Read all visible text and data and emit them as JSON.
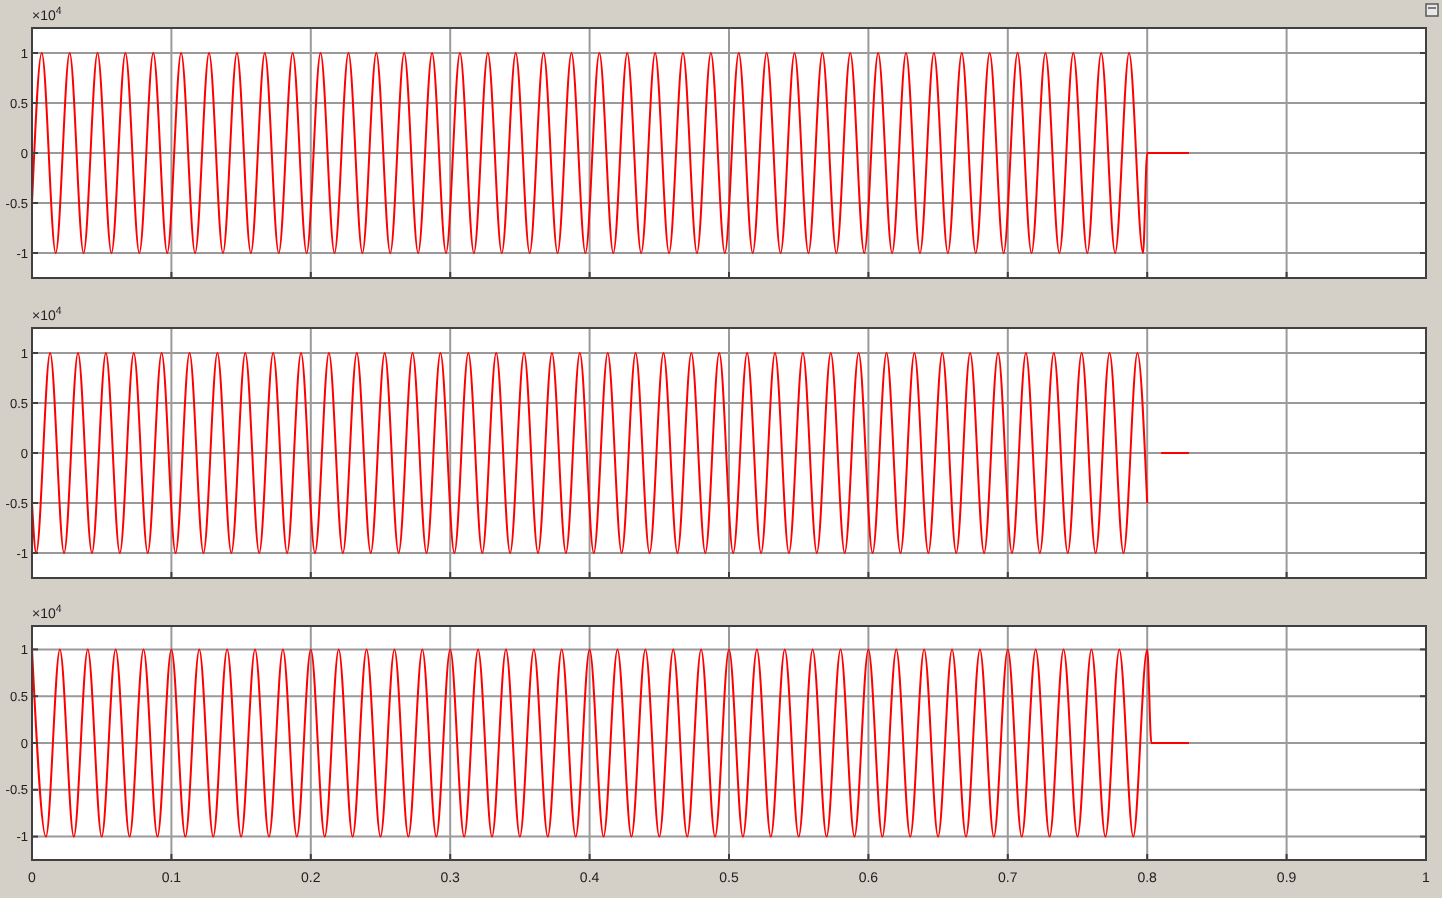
{
  "chart_data": [
    {
      "type": "line",
      "annotations": [
        "×10$^{4}$"
      ],
      "xlim": [
        0,
        1
      ],
      "xticks": [
        0,
        0.1,
        0.2,
        0.3,
        0.4,
        0.5,
        0.6,
        0.7,
        0.8,
        0.9,
        1
      ],
      "ylim": [
        -1.25,
        1.25
      ],
      "yticks": [
        -1,
        -0.5,
        0,
        0.5,
        1
      ],
      "grid": true,
      "tick_labels": "y",
      "x": [
        0,
        0.007,
        0.017,
        0.027,
        0.037,
        0.047,
        0.057,
        0.067,
        0.077,
        0.087,
        0.097,
        0.107,
        0.117,
        0.127,
        0.137,
        0.147,
        0.157,
        0.167,
        0.177,
        0.187,
        0.197,
        0.207,
        0.217,
        0.227,
        0.237,
        0.247,
        0.257,
        0.267,
        0.277,
        0.287,
        0.297,
        0.307,
        0.317,
        0.327,
        0.337,
        0.347,
        0.357,
        0.367,
        0.377,
        0.387,
        0.397,
        0.407,
        0.417,
        0.427,
        0.437,
        0.447,
        0.457,
        0.467,
        0.477,
        0.487,
        0.497,
        0.507,
        0.517,
        0.527,
        0.537,
        0.547,
        0.557,
        0.567,
        0.577,
        0.587,
        0.597,
        0.607,
        0.617,
        0.627,
        0.637,
        0.647,
        0.657,
        0.667,
        0.677,
        0.687,
        0.697,
        0.707,
        0.717,
        0.727,
        0.737,
        0.747,
        0.757,
        0.767,
        0.777,
        0.787,
        0.797,
        0.8,
        0.83
      ],
      "series": [
        {
          "color": "#ff0000",
          "values": [
            -0.5,
            1,
            -1,
            1,
            -1,
            1,
            -1,
            1,
            -1,
            1,
            -1,
            1,
            -1,
            1,
            -1,
            1,
            -1,
            1,
            -1,
            1,
            -1,
            1,
            -1,
            1,
            -1,
            1,
            -1,
            1,
            -1,
            1,
            -1,
            1,
            -1,
            1,
            -1,
            1,
            -1,
            1,
            -1,
            1,
            -1,
            1,
            -1,
            1,
            -1,
            1,
            -1,
            1,
            -1,
            1,
            -1,
            1,
            -1,
            1,
            -1,
            1,
            -1,
            1,
            -1,
            1,
            -1,
            1,
            -1,
            1,
            -1,
            1,
            -1,
            1,
            -1,
            1,
            -1,
            1,
            -1,
            1,
            -1,
            1,
            -1,
            1,
            -1,
            1,
            -1,
            0,
            0
          ]
        }
      ]
    },
    {
      "type": "line",
      "annotations": [
        "×10$^{4}$"
      ],
      "xlim": [
        0,
        1
      ],
      "xticks": [
        0,
        0.1,
        0.2,
        0.3,
        0.4,
        0.5,
        0.6,
        0.7,
        0.8,
        0.9,
        1
      ],
      "ylim": [
        -1.25,
        1.25
      ],
      "yticks": [
        -1,
        -0.5,
        0,
        0.5,
        1
      ],
      "grid": true,
      "tick_labels": "y",
      "x": [
        0,
        0.003,
        0.013,
        0.023,
        0.033,
        0.043,
        0.053,
        0.063,
        0.073,
        0.083,
        0.093,
        0.103,
        0.113,
        0.123,
        0.133,
        0.143,
        0.153,
        0.163,
        0.173,
        0.183,
        0.193,
        0.203,
        0.213,
        0.223,
        0.233,
        0.243,
        0.253,
        0.263,
        0.273,
        0.283,
        0.293,
        0.303,
        0.313,
        0.323,
        0.333,
        0.343,
        0.353,
        0.363,
        0.373,
        0.383,
        0.393,
        0.403,
        0.413,
        0.423,
        0.433,
        0.443,
        0.453,
        0.463,
        0.473,
        0.483,
        0.493,
        0.503,
        0.513,
        0.523,
        0.533,
        0.543,
        0.553,
        0.563,
        0.573,
        0.583,
        0.593,
        0.603,
        0.613,
        0.623,
        0.633,
        0.643,
        0.653,
        0.663,
        0.673,
        0.683,
        0.693,
        0.703,
        0.713,
        0.723,
        0.733,
        0.743,
        0.753,
        0.763,
        0.773,
        0.783,
        0.793,
        0.8,
        0.801,
        0.809,
        0.81,
        0.83
      ],
      "series": [
        {
          "color": "#ff0000",
          "values": [
            -0.5,
            -1,
            1,
            -1,
            1,
            -1,
            1,
            -1,
            1,
            -1,
            1,
            -1,
            1,
            -1,
            1,
            -1,
            1,
            -1,
            1,
            -1,
            1,
            -1,
            1,
            -1,
            1,
            -1,
            1,
            -1,
            1,
            -1,
            1,
            -1,
            1,
            -1,
            1,
            -1,
            1,
            -1,
            1,
            -1,
            1,
            -1,
            1,
            -1,
            1,
            -1,
            1,
            -1,
            1,
            -1,
            1,
            -1,
            1,
            -1,
            1,
            -1,
            1,
            -1,
            1,
            -1,
            1,
            -1,
            1,
            -1,
            1,
            -1,
            1,
            -1,
            1,
            -1,
            1,
            -1,
            1,
            -1,
            1,
            -1,
            1,
            -1,
            1,
            -1,
            1,
            -0.5,
            null,
            null,
            0,
            0
          ]
        }
      ]
    },
    {
      "type": "line",
      "annotations": [
        "×10$^{4}$"
      ],
      "xlim": [
        0,
        1
      ],
      "xticks": [
        0,
        0.1,
        0.2,
        0.3,
        0.4,
        0.5,
        0.6,
        0.7,
        0.8,
        0.9,
        1
      ],
      "ylim": [
        -1.25,
        1.25
      ],
      "yticks": [
        -1,
        -0.5,
        0,
        0.5,
        1
      ],
      "grid": true,
      "x": [
        0,
        0.01,
        0.02,
        0.03,
        0.04,
        0.05,
        0.06,
        0.07,
        0.08,
        0.09,
        0.1,
        0.11,
        0.12,
        0.13,
        0.14,
        0.15,
        0.16,
        0.17,
        0.18,
        0.19,
        0.2,
        0.21,
        0.22,
        0.23,
        0.24,
        0.25,
        0.26,
        0.27,
        0.28,
        0.29,
        0.3,
        0.31,
        0.32,
        0.33,
        0.34,
        0.35,
        0.36,
        0.37,
        0.38,
        0.39,
        0.4,
        0.41,
        0.42,
        0.43,
        0.44,
        0.45,
        0.46,
        0.47,
        0.48,
        0.49,
        0.5,
        0.51,
        0.52,
        0.53,
        0.54,
        0.55,
        0.56,
        0.57,
        0.58,
        0.59,
        0.6,
        0.61,
        0.62,
        0.63,
        0.64,
        0.65,
        0.66,
        0.67,
        0.68,
        0.69,
        0.7,
        0.71,
        0.72,
        0.73,
        0.74,
        0.75,
        0.76,
        0.77,
        0.78,
        0.79,
        0.8,
        0.803,
        0.83
      ],
      "series": [
        {
          "color": "#ff0000",
          "values": [
            1,
            -1,
            1,
            -1,
            1,
            -1,
            1,
            -1,
            1,
            -1,
            1,
            -1,
            1,
            -1,
            1,
            -1,
            1,
            -1,
            1,
            -1,
            1,
            -1,
            1,
            -1,
            1,
            -1,
            1,
            -1,
            1,
            -1,
            1,
            -1,
            1,
            -1,
            1,
            -1,
            1,
            -1,
            1,
            -1,
            1,
            -1,
            1,
            -1,
            1,
            -1,
            1,
            -1,
            1,
            -1,
            1,
            -1,
            1,
            -1,
            1,
            -1,
            1,
            -1,
            1,
            -1,
            1,
            -1,
            1,
            -1,
            1,
            -1,
            1,
            -1,
            1,
            -1,
            1,
            -1,
            1,
            -1,
            1,
            -1,
            1,
            -1,
            1,
            -1,
            1,
            0,
            0
          ]
        }
      ]
    }
  ]
}
